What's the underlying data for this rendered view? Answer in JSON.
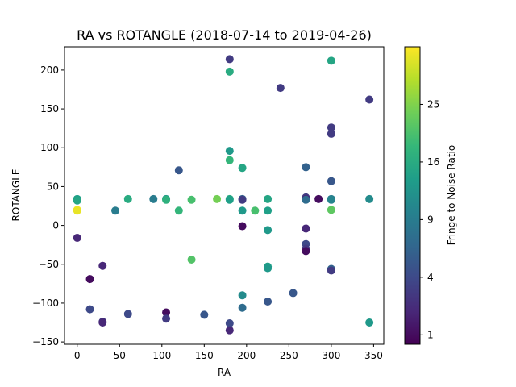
{
  "chart_data": {
    "type": "scatter",
    "title": "RA vs ROTANGLE (2018-07-14 to 2019-04-26)",
    "xlabel": "RA",
    "ylabel": "ROTANGLE",
    "xlim": [
      -15,
      362
    ],
    "ylim": [
      -153,
      230
    ],
    "xticks": [
      0,
      50,
      100,
      150,
      200,
      250,
      300,
      350
    ],
    "yticks": [
      -150,
      -100,
      -50,
      0,
      50,
      100,
      150,
      200
    ],
    "grid": false,
    "colorbar": {
      "label": "Fringe to Noise Ratio",
      "colormap": "viridis",
      "scale": "sqrt",
      "range": [
        0.7,
        36
      ],
      "ticks": [
        1,
        4,
        9,
        16,
        25
      ],
      "colors": [
        "#440154",
        "#482878",
        "#3e4989",
        "#31688e",
        "#26828e",
        "#1f9e89",
        "#35b779",
        "#6ece58",
        "#b5de2b",
        "#fde725"
      ]
    },
    "points": [
      {
        "x": 0,
        "y": 34,
        "c": 14
      },
      {
        "x": 0,
        "y": 32,
        "c": 15
      },
      {
        "x": 0,
        "y": 20,
        "c": 35
      },
      {
        "x": 0,
        "y": 19,
        "c": 34
      },
      {
        "x": 0,
        "y": -16,
        "c": 2
      },
      {
        "x": 15,
        "y": -69,
        "c": 1
      },
      {
        "x": 15,
        "y": -108,
        "c": 4
      },
      {
        "x": 30,
        "y": -52,
        "c": 2
      },
      {
        "x": 30,
        "y": -124,
        "c": 3
      },
      {
        "x": 30,
        "y": -125,
        "c": 2
      },
      {
        "x": 45,
        "y": 19,
        "c": 9
      },
      {
        "x": 60,
        "y": 34,
        "c": 16
      },
      {
        "x": 60,
        "y": -114,
        "c": 4
      },
      {
        "x": 90,
        "y": 34,
        "c": 9
      },
      {
        "x": 105,
        "y": 34,
        "c": 13
      },
      {
        "x": 105,
        "y": 33,
        "c": 17
      },
      {
        "x": 105,
        "y": -112,
        "c": 1
      },
      {
        "x": 105,
        "y": -120,
        "c": 3
      },
      {
        "x": 120,
        "y": 71,
        "c": 5
      },
      {
        "x": 120,
        "y": 19,
        "c": 18
      },
      {
        "x": 135,
        "y": 33,
        "c": 20
      },
      {
        "x": 135,
        "y": -44,
        "c": 21
      },
      {
        "x": 150,
        "y": -115,
        "c": 5
      },
      {
        "x": 165,
        "y": 34,
        "c": 24
      },
      {
        "x": 180,
        "y": 214,
        "c": 3
      },
      {
        "x": 180,
        "y": 198,
        "c": 16
      },
      {
        "x": 180,
        "y": 96,
        "c": 13
      },
      {
        "x": 180,
        "y": 84,
        "c": 18
      },
      {
        "x": 180,
        "y": 34,
        "c": 16
      },
      {
        "x": 180,
        "y": 33,
        "c": 14
      },
      {
        "x": 180,
        "y": -126,
        "c": 4
      },
      {
        "x": 180,
        "y": -135,
        "c": 2
      },
      {
        "x": 195,
        "y": 74,
        "c": 15
      },
      {
        "x": 195,
        "y": 34,
        "c": 6
      },
      {
        "x": 195,
        "y": 33,
        "c": 3
      },
      {
        "x": 195,
        "y": 19,
        "c": 13
      },
      {
        "x": 195,
        "y": -1,
        "c": 1
      },
      {
        "x": 195,
        "y": -90,
        "c": 11
      },
      {
        "x": 195,
        "y": -106,
        "c": 7
      },
      {
        "x": 210,
        "y": 19,
        "c": 20
      },
      {
        "x": 225,
        "y": 34,
        "c": 15
      },
      {
        "x": 225,
        "y": 19,
        "c": 14
      },
      {
        "x": 225,
        "y": -6,
        "c": 13
      },
      {
        "x": 225,
        "y": -53,
        "c": 14
      },
      {
        "x": 225,
        "y": -55,
        "c": 13
      },
      {
        "x": 225,
        "y": -98,
        "c": 5
      },
      {
        "x": 240,
        "y": 177,
        "c": 3
      },
      {
        "x": 255,
        "y": -87,
        "c": 5
      },
      {
        "x": 270,
        "y": 75,
        "c": 6
      },
      {
        "x": 270,
        "y": 36,
        "c": 3
      },
      {
        "x": 270,
        "y": 34,
        "c": 2
      },
      {
        "x": 270,
        "y": 33,
        "c": 7
      },
      {
        "x": 270,
        "y": -4,
        "c": 2
      },
      {
        "x": 270,
        "y": -24,
        "c": 4
      },
      {
        "x": 270,
        "y": -30,
        "c": 3
      },
      {
        "x": 270,
        "y": -33,
        "c": 1
      },
      {
        "x": 285,
        "y": 34,
        "c": 1
      },
      {
        "x": 300,
        "y": 212,
        "c": 15
      },
      {
        "x": 300,
        "y": 126,
        "c": 3
      },
      {
        "x": 300,
        "y": 118,
        "c": 3
      },
      {
        "x": 300,
        "y": 57,
        "c": 5
      },
      {
        "x": 300,
        "y": 34,
        "c": 9
      },
      {
        "x": 300,
        "y": 33,
        "c": 10
      },
      {
        "x": 300,
        "y": 20,
        "c": 22
      },
      {
        "x": 300,
        "y": -56,
        "c": 6
      },
      {
        "x": 300,
        "y": -58,
        "c": 3
      },
      {
        "x": 345,
        "y": 162,
        "c": 3
      },
      {
        "x": 345,
        "y": 34,
        "c": 11
      },
      {
        "x": 345,
        "y": -125,
        "c": 13
      }
    ]
  }
}
